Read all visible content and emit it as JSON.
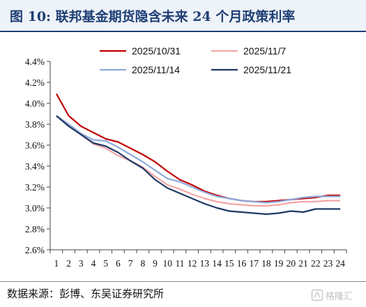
{
  "title": "图 10:  联邦基金期货隐含未来 24 个月政策利率",
  "source": "数据来源：彭博、东吴证券研究所",
  "watermark": "格隆汇",
  "chart_data": {
    "type": "line",
    "title": "",
    "xlabel": "",
    "ylabel": "",
    "categories": [
      1,
      2,
      3,
      4,
      5,
      6,
      7,
      8,
      9,
      10,
      11,
      12,
      13,
      14,
      15,
      16,
      17,
      18,
      19,
      20,
      21,
      22,
      23,
      24
    ],
    "y_ticks": [
      "2.6%",
      "2.8%",
      "3.0%",
      "3.2%",
      "3.4%",
      "3.6%",
      "3.8%",
      "4.0%",
      "4.2%",
      "4.4%"
    ],
    "ylim": [
      2.6,
      4.4
    ],
    "grid": false,
    "legend_position": "top",
    "series": [
      {
        "name": "2025/10/31",
        "color": "#c00000",
        "values": [
          4.09,
          3.88,
          3.78,
          3.72,
          3.66,
          3.63,
          3.57,
          3.51,
          3.44,
          3.35,
          3.27,
          3.22,
          3.16,
          3.12,
          3.09,
          3.07,
          3.06,
          3.06,
          3.07,
          3.08,
          3.09,
          3.1,
          3.12,
          3.12
        ]
      },
      {
        "name": "2025/11/7",
        "color": "#f4a6a6",
        "values": [
          3.88,
          3.8,
          3.7,
          3.61,
          3.57,
          3.5,
          3.45,
          3.39,
          3.3,
          3.22,
          3.18,
          3.13,
          3.09,
          3.06,
          3.04,
          3.03,
          3.02,
          3.02,
          3.03,
          3.05,
          3.06,
          3.06,
          3.07,
          3.07
        ]
      },
      {
        "name": "2025/11/14",
        "color": "#8faadc",
        "values": [
          3.88,
          3.8,
          3.71,
          3.65,
          3.64,
          3.58,
          3.51,
          3.44,
          3.36,
          3.28,
          3.25,
          3.2,
          3.15,
          3.11,
          3.09,
          3.07,
          3.06,
          3.05,
          3.06,
          3.08,
          3.1,
          3.11,
          3.11,
          3.11
        ]
      },
      {
        "name": "2025/11/21",
        "color": "#1f3864",
        "values": [
          3.88,
          3.78,
          3.7,
          3.62,
          3.59,
          3.53,
          3.45,
          3.38,
          3.27,
          3.19,
          3.14,
          3.09,
          3.04,
          3.0,
          2.97,
          2.96,
          2.95,
          2.94,
          2.95,
          2.97,
          2.96,
          2.99,
          2.99,
          2.99
        ]
      }
    ]
  }
}
